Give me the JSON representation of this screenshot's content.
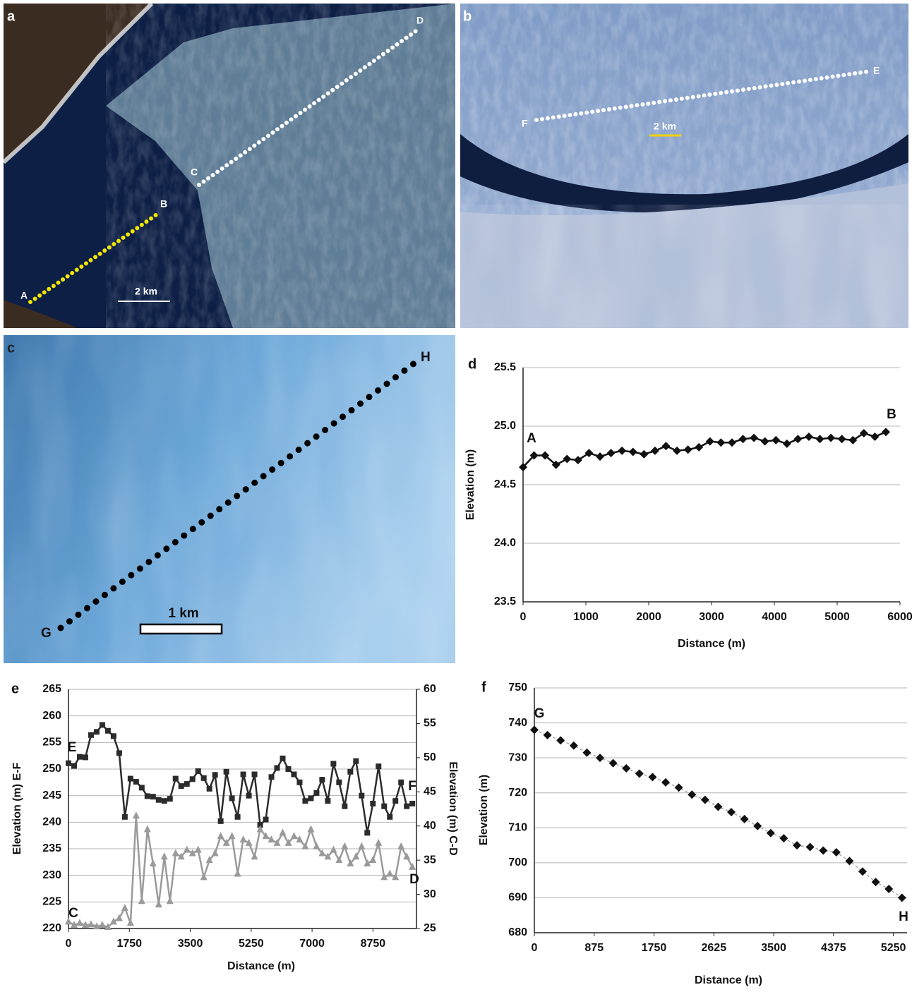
{
  "panels": [
    {
      "label": "a",
      "points": [
        "A",
        "B",
        "C",
        "D"
      ],
      "scale": "2 km"
    },
    {
      "label": "b",
      "points": [
        "E",
        "F"
      ],
      "scale": "2 km"
    },
    {
      "label": "c",
      "points": [
        "G",
        "H"
      ],
      "scale": "1 km"
    }
  ],
  "chart_data": [
    {
      "type": "line",
      "panel_label": "d",
      "x_label": "Distance (m)",
      "y_label": "Elevation (m)",
      "annotations": [
        "A",
        "B"
      ],
      "x": [
        0,
        175,
        350,
        525,
        700,
        875,
        1050,
        1225,
        1400,
        1575,
        1750,
        1925,
        2100,
        2275,
        2450,
        2625,
        2800,
        2975,
        3150,
        3325,
        3500,
        3675,
        3850,
        4025,
        4200,
        4375,
        4550,
        4725,
        4900,
        5075,
        5250,
        5425,
        5600,
        5775
      ],
      "xlim": [
        0,
        6000
      ],
      "xticks": [
        0,
        1000,
        2000,
        3000,
        4000,
        5000,
        6000
      ],
      "ylim": [
        23.5,
        25.5
      ],
      "yticks": [
        23.5,
        {
          "value": 24,
          "label": "24.0"
        },
        24.5,
        {
          "value": 25,
          "label": "25.0"
        },
        25.5
      ],
      "grid": true,
      "series": [
        {
          "color": "#111111",
          "marker": "diamond",
          "line_style": "solid",
          "values": [
            24.65,
            24.75,
            24.75,
            24.67,
            24.72,
            24.71,
            24.77,
            24.74,
            24.77,
            24.79,
            24.78,
            24.76,
            24.79,
            24.83,
            24.79,
            24.8,
            24.82,
            24.87,
            24.86,
            24.86,
            24.89,
            24.9,
            24.87,
            24.88,
            24.85,
            24.89,
            24.91,
            24.89,
            24.9,
            24.89,
            24.88,
            24.94,
            24.91,
            24.95
          ]
        }
      ]
    },
    {
      "type": "line",
      "panel_label": "e",
      "x_label": "Distance (m)",
      "y_label": "Elevation (m) E-F",
      "y2_label": "Elevation (m) C-D",
      "annotations": [
        "E",
        "F",
        "C",
        "D"
      ],
      "x": [
        0,
        162,
        324,
        486,
        648,
        810,
        972,
        1134,
        1296,
        1458,
        1620,
        1782,
        1944,
        2106,
        2268,
        2430,
        2592,
        2754,
        2916,
        3078,
        3240,
        3402,
        3564,
        3726,
        3888,
        4050,
        4212,
        4374,
        4536,
        4698,
        4860,
        5022,
        5184,
        5346,
        5508,
        5670,
        5832,
        5994,
        6156,
        6318,
        6480,
        6642,
        6804,
        6966,
        7128,
        7290,
        7452,
        7614,
        7776,
        7938,
        8100,
        8262,
        8424,
        8586,
        8748,
        8910,
        9072,
        9234,
        9396,
        9558,
        9720,
        9882
      ],
      "xlim": [
        0,
        10000
      ],
      "xticks": [
        0,
        1750,
        3500,
        5250,
        7000,
        8750
      ],
      "ylim": [
        220,
        265
      ],
      "yticks": [
        220,
        225,
        230,
        235,
        240,
        245,
        250,
        255,
        260,
        265
      ],
      "y2lim": [
        25,
        60
      ],
      "y2ticks": [
        25,
        30,
        35,
        40,
        45,
        50,
        55,
        60
      ],
      "grid": true,
      "series": [
        {
          "color": "#2b2b2b",
          "marker": "square",
          "line_style": "solid",
          "values": [
            251.1,
            250.6,
            252.3,
            252.2,
            256.4,
            257.0,
            258.3,
            257.2,
            256.2,
            253.0,
            241.0,
            248.2,
            247.6,
            246.5,
            244.9,
            244.8,
            244.2,
            244.0,
            244.4,
            248.2,
            246.8,
            247.2,
            248.1,
            249.6,
            248.3,
            246.3,
            248.9,
            240.2,
            249.5,
            244.5,
            241.0,
            249.0,
            245.0,
            249.0,
            239.5,
            240.5,
            248.5,
            250.2,
            252.0,
            250.0,
            249.0,
            247.5,
            244.0,
            244.5,
            245.5,
            248.0,
            244.0,
            251.0,
            247.5,
            243.0,
            249.5,
            251.5,
            245.0,
            238.0,
            243.5,
            250.5,
            243.0,
            241.0,
            244.0,
            247.5,
            243.0,
            243.5
          ]
        },
        {
          "color": "#9a9a9a",
          "marker": "triangle",
          "line_style": "solid",
          "axis": "y2",
          "values": [
            26.0,
            25.5,
            25.8,
            25.5,
            25.6,
            25.3,
            25.5,
            25.2,
            26.0,
            26.5,
            28.0,
            25.8,
            41.5,
            29.0,
            39.5,
            34.5,
            28.5,
            35.5,
            29.0,
            36.0,
            35.5,
            36.5,
            36.0,
            36.5,
            32.5,
            35.0,
            36.0,
            38.5,
            37.5,
            38.5,
            33.0,
            38.0,
            37.5,
            35.5,
            39.5,
            38.5,
            38.0,
            37.5,
            39.0,
            37.5,
            38.5,
            38.0,
            37.0,
            39.5,
            37.0,
            36.0,
            35.5,
            36.5,
            35.0,
            37.0,
            34.5,
            35.5,
            37.0,
            34.5,
            35.0,
            37.5,
            32.5,
            33.0,
            32.5,
            37.0,
            35.5,
            34.0
          ]
        }
      ]
    },
    {
      "type": "line",
      "panel_label": "f",
      "x_label": "Distance (m)",
      "y_label": "Elevation (m)",
      "annotations": [
        "G",
        "H"
      ],
      "x": [
        0,
        192,
        384,
        576,
        768,
        960,
        1152,
        1344,
        1536,
        1728,
        1920,
        2112,
        2304,
        2496,
        2688,
        2880,
        3072,
        3264,
        3456,
        3648,
        3840,
        4032,
        4224,
        4416,
        4608,
        4800,
        4992,
        5184,
        5376
      ],
      "xlim": [
        0,
        5450
      ],
      "xticks": [
        0,
        875,
        1750,
        2625,
        3500,
        4375,
        5250
      ],
      "ylim": [
        680,
        750
      ],
      "yticks": [
        680,
        690,
        700,
        710,
        720,
        730,
        740,
        750
      ],
      "grid": true,
      "series": [
        {
          "color": "#111111",
          "line_color": "#aaaaaa",
          "marker": "diamond",
          "line_style": "dashed",
          "values": [
            738,
            736.5,
            735,
            733.5,
            731.5,
            730,
            728.5,
            727,
            725.5,
            724.5,
            723,
            721.5,
            719.5,
            718,
            716,
            714.5,
            712.5,
            710.5,
            708.5,
            707,
            705,
            704.5,
            703.5,
            703,
            700.5,
            697.5,
            694.5,
            692.5,
            690
          ]
        }
      ]
    }
  ]
}
